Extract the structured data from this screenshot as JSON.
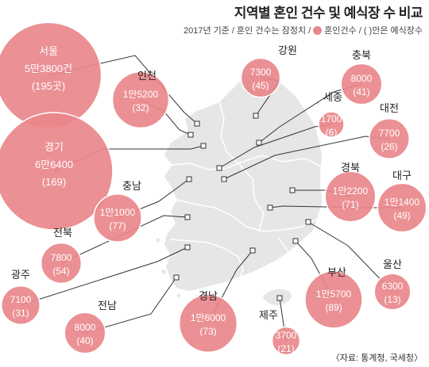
{
  "header": {
    "title": "지역별 혼인 건수 및 예식장 수 비교",
    "note_prefix": "2017년 기준 / 혼인 건수는 잠정치 /",
    "legend_marriages": "혼인건수",
    "legend_venues": "/ (  )안은 예식장수",
    "legend_color": "#e8878a"
  },
  "source": "〈자료: 통계청, 국세청〉",
  "colors": {
    "bubble_fill": "#e9878b",
    "bubble_stroke": "#ffffff",
    "land_fill": "#e6e6e6",
    "land_stroke": "#ffffff",
    "leader": "#333333"
  },
  "regions": [
    {
      "name": "서울",
      "marriages": "5만3800건",
      "venues": "(195곳)",
      "value": 53800
    },
    {
      "name": "인천",
      "marriages": "1만5200",
      "venues": "(32)",
      "value": 15200
    },
    {
      "name": "경기",
      "marriages": "6만6400",
      "venues": "(169)",
      "value": 66400
    },
    {
      "name": "충남",
      "marriages": "1만1000",
      "venues": "(77)",
      "value": 11000
    },
    {
      "name": "전북",
      "marriages": "7800",
      "venues": "(54)",
      "value": 7800
    },
    {
      "name": "광주",
      "marriages": "7100",
      "venues": "(31)",
      "value": 7100
    },
    {
      "name": "전남",
      "marriages": "8000",
      "venues": "(40)",
      "value": 8000
    },
    {
      "name": "경남",
      "marriages": "1만6000",
      "venues": "(73)",
      "value": 16000
    },
    {
      "name": "제주",
      "marriages": "3700",
      "venues": "(21)",
      "value": 3700
    },
    {
      "name": "부산",
      "marriages": "1만5700",
      "venues": "(89)",
      "value": 15700
    },
    {
      "name": "울산",
      "marriages": "6300",
      "venues": "(13)",
      "value": 6300
    },
    {
      "name": "대구",
      "marriages": "1만1400",
      "venues": "(49)",
      "value": 11400
    },
    {
      "name": "경북",
      "marriages": "1만2200",
      "venues": "(71)",
      "value": 12200
    },
    {
      "name": "대전",
      "marriages": "7700",
      "venues": "(26)",
      "value": 7700
    },
    {
      "name": "세종",
      "marriages": "1700",
      "venues": "(6)",
      "value": 1700
    },
    {
      "name": "충북",
      "marriages": "8000",
      "venues": "(41)",
      "value": 8000
    },
    {
      "name": "강원",
      "marriages": "7300",
      "venues": "(45)",
      "value": 7300
    }
  ]
}
